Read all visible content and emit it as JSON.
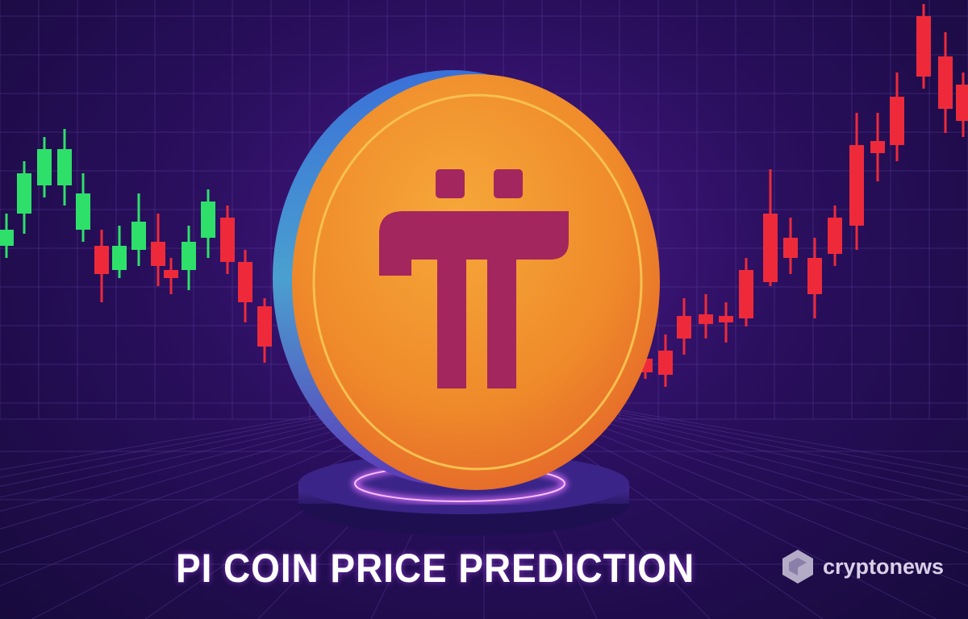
{
  "headline": "PI COIN PRICE PREDICTION",
  "brand": {
    "name": "cryptonews",
    "icon": "cryptonews-logo-icon"
  },
  "coin": {
    "symbol": "pi-symbol-icon",
    "face_color": "#f0902a",
    "symbol_color": "#a3265e"
  },
  "colors": {
    "bull": "#2ee06a",
    "bear": "#ee2a3a",
    "glow": "#c040ff",
    "background": "#2a0f5e"
  }
}
